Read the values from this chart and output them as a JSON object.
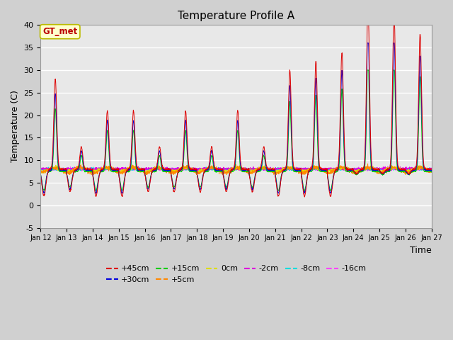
{
  "title": "Temperature Profile A",
  "xlabel": "Time",
  "ylabel": "Temperature (C)",
  "ylim": [
    -5,
    40
  ],
  "yticks": [
    -5,
    0,
    5,
    10,
    15,
    20,
    25,
    30,
    35,
    40
  ],
  "xtick_labels": [
    "Jan 12",
    "Jan 13",
    "Jan 14",
    "Jan 15",
    "Jan 16",
    "Jan 17",
    "Jan 18",
    "Jan 19",
    "Jan 20",
    "Jan 21",
    "Jan 22",
    "Jan 23",
    "Jan 24",
    "Jan 25",
    "Jan 26",
    "Jan 27"
  ],
  "series_colors": {
    "+45cm": "#dd0000",
    "+30cm": "#0000dd",
    "+15cm": "#00cc00",
    "+5cm": "#ff8800",
    "0cm": "#dddd00",
    "-2cm": "#dd00dd",
    "-8cm": "#00dddd",
    "-16cm": "#ff44ff"
  },
  "annotation_label": "GT_met",
  "annotation_bg": "#ffffcc",
  "annotation_border": "#bbbb00",
  "annotation_text_color": "#bb0000",
  "fig_bg": "#d0d0d0",
  "plot_bg": "#e8e8e8",
  "grid_color": "#ffffff",
  "legend_ncol_row1": 6,
  "legend_ncol_row2": 2
}
